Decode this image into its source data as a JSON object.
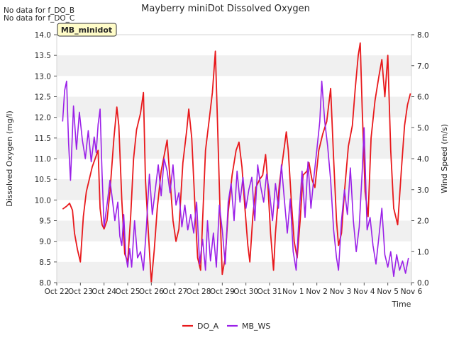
{
  "chart_data": {
    "type": "line",
    "title": "Mayberry miniDot Dissolved Oxygen",
    "notes": [
      "No data for f_DO_B",
      "No data for f_DO_C"
    ],
    "site_badge": "MB_minidot",
    "xlabel": "Time",
    "ylabel_left": "Dissolved Oxygen (mg/l)",
    "ylabel_right": "Wind Speed (m/s)",
    "x_range": [
      "Oct 22",
      "Nov 6"
    ],
    "x_ticks": [
      "Oct 22",
      "Oct 23",
      "Oct 24",
      "Oct 25",
      "Oct 26",
      "Oct 27",
      "Oct 28",
      "Oct 29",
      "Oct 30",
      "Oct 31",
      "Nov 1",
      "Nov 2",
      "Nov 3",
      "Nov 4",
      "Nov 5",
      "Nov 6"
    ],
    "ylim_left": [
      8.0,
      14.0
    ],
    "yticks_left": [
      "8.0",
      "8.5",
      "9.0",
      "9.5",
      "10.0",
      "10.5",
      "11.0",
      "11.5",
      "12.0",
      "12.5",
      "13.0",
      "13.5",
      "14.0"
    ],
    "ylim_right": [
      0.0,
      8.0
    ],
    "yticks_right": [
      "0.0",
      "1.0",
      "2.0",
      "3.0",
      "4.0",
      "5.0",
      "6.0",
      "7.0",
      "8.0"
    ],
    "grid": "horizontal bands",
    "legend_position": "bottom-center",
    "series": [
      {
        "name": "DO_A",
        "axis": "left",
        "color": "#e8191c",
        "points": [
          [
            "Oct 22 06:00",
            9.78
          ],
          [
            "Oct 22 10:00",
            9.85
          ],
          [
            "Oct 22 13:00",
            9.92
          ],
          [
            "Oct 22 16:00",
            9.75
          ],
          [
            "Oct 22 18:00",
            9.2
          ],
          [
            "Oct 22 21:00",
            8.8
          ],
          [
            "Oct 23 00:00",
            8.5
          ],
          [
            "Oct 23 03:00",
            9.6
          ],
          [
            "Oct 23 06:00",
            10.2
          ],
          [
            "Oct 23 12:00",
            10.8
          ],
          [
            "Oct 23 18:00",
            11.2
          ],
          [
            "Oct 23 20:00",
            9.8
          ],
          [
            "Oct 23 22:00",
            9.4
          ],
          [
            "Oct 24 00:00",
            9.3
          ],
          [
            "Oct 24 03:00",
            9.5
          ],
          [
            "Oct 24 06:00",
            10.2
          ],
          [
            "Oct 24 10:00",
            11.5
          ],
          [
            "Oct 24 13:00",
            12.25
          ],
          [
            "Oct 24 15:00",
            11.8
          ],
          [
            "Oct 24 18:00",
            10.0
          ],
          [
            "Oct 24 21:00",
            8.7
          ],
          [
            "Oct 25 00:00",
            8.5
          ],
          [
            "Oct 25 03:00",
            9.6
          ],
          [
            "Oct 25 06:00",
            11.0
          ],
          [
            "Oct 25 09:00",
            11.7
          ],
          [
            "Oct 25 13:00",
            12.1
          ],
          [
            "Oct 25 16:00",
            12.6
          ],
          [
            "Oct 25 18:00",
            10.5
          ],
          [
            "Oct 25 21:00",
            9.2
          ],
          [
            "Oct 26 00:00",
            8.0
          ],
          [
            "Oct 26 03:00",
            8.8
          ],
          [
            "Oct 26 06:00",
            9.8
          ],
          [
            "Oct 26 10:00",
            10.7
          ],
          [
            "Oct 26 14:00",
            11.2
          ],
          [
            "Oct 26 16:00",
            11.45
          ],
          [
            "Oct 26 19:00",
            10.5
          ],
          [
            "Oct 26 22:00",
            9.5
          ],
          [
            "Oct 27 01:00",
            9.0
          ],
          [
            "Oct 27 04:00",
            9.3
          ],
          [
            "Oct 27 08:00",
            10.9
          ],
          [
            "Oct 27 12:00",
            11.7
          ],
          [
            "Oct 27 14:00",
            12.2
          ],
          [
            "Oct 27 17:00",
            11.5
          ],
          [
            "Oct 27 20:00",
            10.0
          ],
          [
            "Oct 27 23:00",
            8.6
          ],
          [
            "Oct 28 02:00",
            8.3
          ],
          [
            "Oct 28 04:00",
            9.5
          ],
          [
            "Oct 28 07:00",
            11.2
          ],
          [
            "Oct 28 11:00",
            12.0
          ],
          [
            "Oct 28 14:00",
            12.6
          ],
          [
            "Oct 28 17:00",
            13.6
          ],
          [
            "Oct 28 19:00",
            12.0
          ],
          [
            "Oct 28 22:00",
            9.5
          ],
          [
            "Oct 29 00:00",
            8.2
          ],
          [
            "Oct 29 03:00",
            8.6
          ],
          [
            "Oct 29 06:00",
            9.7
          ],
          [
            "Oct 29 10:00",
            10.6
          ],
          [
            "Oct 29 14:00",
            11.2
          ],
          [
            "Oct 29 17:00",
            11.4
          ],
          [
            "Oct 29 20:00",
            10.8
          ],
          [
            "Oct 29 23:00",
            9.8
          ],
          [
            "Oct 30 02:00",
            8.9
          ],
          [
            "Oct 30 04:00",
            8.5
          ],
          [
            "Oct 30 07:00",
            9.6
          ],
          [
            "Oct 30 10:00",
            10.3
          ],
          [
            "Oct 30 14:00",
            10.5
          ],
          [
            "Oct 30 17:00",
            10.6
          ],
          [
            "Oct 30 20:00",
            11.1
          ],
          [
            "Oct 30 22:00",
            10.5
          ],
          [
            "Oct 31 01:00",
            9.2
          ],
          [
            "Oct 31 04:00",
            8.3
          ],
          [
            "Oct 31 06:00",
            9.2
          ],
          [
            "Oct 31 10:00",
            10.4
          ],
          [
            "Oct 31 14:00",
            11.1
          ],
          [
            "Oct 31 17:00",
            11.65
          ],
          [
            "Oct 31 19:00",
            11.2
          ],
          [
            "Oct 31 22:00",
            10.0
          ],
          [
            "Nov 1 01:00",
            9.0
          ],
          [
            "Nov 1 04:00",
            8.6
          ],
          [
            "Nov 1 07:00",
            9.5
          ],
          [
            "Nov 1 10:00",
            10.6
          ],
          [
            "Nov 1 14:00",
            10.7
          ],
          [
            "Nov 1 16:00",
            10.9
          ],
          [
            "Nov 1 19:00",
            10.5
          ],
          [
            "Nov 1 22:00",
            10.3
          ],
          [
            "Nov 2 02:00",
            11.2
          ],
          [
            "Nov 2 06:00",
            11.6
          ],
          [
            "Nov 2 10:00",
            11.9
          ],
          [
            "Nov 2 14:00",
            12.7
          ],
          [
            "Nov 2 17:00",
            11.0
          ],
          [
            "Nov 2 20:00",
            9.5
          ],
          [
            "Nov 2 22:00",
            8.9
          ],
          [
            "Nov 3 01:00",
            9.2
          ],
          [
            "Nov 3 04:00",
            10.2
          ],
          [
            "Nov 3 08:00",
            11.3
          ],
          [
            "Nov 3 12:00",
            11.8
          ],
          [
            "Nov 3 15:00",
            12.7
          ],
          [
            "Nov 3 18:00",
            13.5
          ],
          [
            "Nov 3 20:00",
            13.8
          ],
          [
            "Nov 3 22:00",
            12.2
          ],
          [
            "Nov 4 01:00",
            10.2
          ],
          [
            "Nov 4 04:00",
            9.6
          ],
          [
            "Nov 4 07:00",
            11.5
          ],
          [
            "Nov 4 11:00",
            12.4
          ],
          [
            "Nov 4 15:00",
            13.0
          ],
          [
            "Nov 4 18:00",
            13.4
          ],
          [
            "Nov 4 21:00",
            12.5
          ],
          [
            "Nov 5 00:00",
            13.5
          ],
          [
            "Nov 5 03:00",
            11.2
          ],
          [
            "Nov 5 06:00",
            9.8
          ],
          [
            "Nov 5 10:00",
            9.4
          ],
          [
            "Nov 5 14:00",
            10.8
          ],
          [
            "Nov 5 17:00",
            11.8
          ],
          [
            "Nov 5 20:00",
            12.3
          ],
          [
            "Nov 5 23:00",
            12.58
          ]
        ]
      },
      {
        "name": "MB_WS",
        "axis": "right",
        "color": "#9a20e8",
        "points": [
          [
            "Oct 22 06:00",
            5.2
          ],
          [
            "Oct 22 08:00",
            6.2
          ],
          [
            "Oct 22 10:00",
            6.5
          ],
          [
            "Oct 22 12:00",
            4.5
          ],
          [
            "Oct 22 14:00",
            3.3
          ],
          [
            "Oct 22 17:00",
            5.7
          ],
          [
            "Oct 22 20:00",
            4.3
          ],
          [
            "Oct 22 23:00",
            5.5
          ],
          [
            "Oct 23 02:00",
            4.6
          ],
          [
            "Oct 23 05:00",
            4.0
          ],
          [
            "Oct 23 08:00",
            4.9
          ],
          [
            "Oct 23 11:00",
            3.9
          ],
          [
            "Oct 23 14:00",
            4.7
          ],
          [
            "Oct 23 16:00",
            4.2
          ],
          [
            "Oct 23 18:00",
            5.1
          ],
          [
            "Oct 23 20:00",
            5.6
          ],
          [
            "Oct 23 22:00",
            3.5
          ],
          [
            "Oct 24 00:00",
            1.8
          ],
          [
            "Oct 24 03:00",
            2.5
          ],
          [
            "Oct 24 06:00",
            3.3
          ],
          [
            "Oct 24 08:00",
            2.8
          ],
          [
            "Oct 24 11:00",
            2.0
          ],
          [
            "Oct 24 14:00",
            2.6
          ],
          [
            "Oct 24 16:00",
            1.5
          ],
          [
            "Oct 24 18:00",
            1.2
          ],
          [
            "Oct 24 20:00",
            2.2
          ],
          [
            "Oct 24 22:00",
            0.9
          ],
          [
            "Oct 25 00:00",
            0.5
          ],
          [
            "Oct 25 02:00",
            1.1
          ],
          [
            "Oct 25 04:00",
            0.5
          ],
          [
            "Oct 25 07:00",
            2.0
          ],
          [
            "Oct 25 10:00",
            0.8
          ],
          [
            "Oct 25 13:00",
            1.0
          ],
          [
            "Oct 25 16:00",
            0.4
          ],
          [
            "Oct 25 19:00",
            1.8
          ],
          [
            "Oct 25 22:00",
            3.5
          ],
          [
            "Oct 26 01:00",
            2.2
          ],
          [
            "Oct 26 04:00",
            3.0
          ],
          [
            "Oct 26 07:00",
            3.8
          ],
          [
            "Oct 26 10:00",
            2.8
          ],
          [
            "Oct 26 13:00",
            4.0
          ],
          [
            "Oct 26 16:00",
            3.6
          ],
          [
            "Oct 26 19:00",
            2.9
          ],
          [
            "Oct 26 22:00",
            3.8
          ],
          [
            "Oct 27 01:00",
            2.5
          ],
          [
            "Oct 27 04:00",
            2.9
          ],
          [
            "Oct 27 07:00",
            1.8
          ],
          [
            "Oct 27 10:00",
            2.5
          ],
          [
            "Oct 27 13:00",
            1.7
          ],
          [
            "Oct 27 16:00",
            2.2
          ],
          [
            "Oct 27 19:00",
            1.6
          ],
          [
            "Oct 27 22:00",
            2.6
          ],
          [
            "Oct 28 01:00",
            0.6
          ],
          [
            "Oct 28 04:00",
            1.4
          ],
          [
            "Oct 28 07:00",
            0.4
          ],
          [
            "Oct 28 09:00",
            2.0
          ],
          [
            "Oct 28 12:00",
            0.7
          ],
          [
            "Oct 28 15:00",
            1.6
          ],
          [
            "Oct 28 18:00",
            0.5
          ],
          [
            "Oct 28 21:00",
            2.5
          ],
          [
            "Oct 29 00:00",
            1.7
          ],
          [
            "Oct 29 03:00",
            0.6
          ],
          [
            "Oct 29 06:00",
            2.6
          ],
          [
            "Oct 29 09:00",
            3.2
          ],
          [
            "Oct 29 12:00",
            2.0
          ],
          [
            "Oct 29 15:00",
            3.6
          ],
          [
            "Oct 29 18:00",
            2.6
          ],
          [
            "Oct 29 21:00",
            3.4
          ],
          [
            "Oct 30 00:00",
            2.4
          ],
          [
            "Oct 30 03:00",
            3.0
          ],
          [
            "Oct 30 06:00",
            3.4
          ],
          [
            "Oct 30 09:00",
            2.0
          ],
          [
            "Oct 30 12:00",
            3.8
          ],
          [
            "Oct 30 15:00",
            3.1
          ],
          [
            "Oct 30 18:00",
            2.6
          ],
          [
            "Oct 30 21:00",
            3.5
          ],
          [
            "Oct 31 00:00",
            2.9
          ],
          [
            "Oct 31 03:00",
            2.0
          ],
          [
            "Oct 31 06:00",
            3.2
          ],
          [
            "Oct 31 09:00",
            2.4
          ],
          [
            "Oct 31 12:00",
            3.8
          ],
          [
            "Oct 31 15:00",
            2.7
          ],
          [
            "Oct 31 18:00",
            1.6
          ],
          [
            "Oct 31 21:00",
            2.7
          ],
          [
            "Nov 1 00:00",
            1.0
          ],
          [
            "Nov 1 03:00",
            0.4
          ],
          [
            "Nov 1 06:00",
            2.2
          ],
          [
            "Nov 1 09:00",
            3.6
          ],
          [
            "Nov 1 12:00",
            2.1
          ],
          [
            "Nov 1 15:00",
            3.9
          ],
          [
            "Nov 1 18:00",
            2.4
          ],
          [
            "Nov 1 21:00",
            3.4
          ],
          [
            "Nov 2 00:00",
            4.3
          ],
          [
            "Nov 2 03:00",
            5.2
          ],
          [
            "Nov 2 05:00",
            6.5
          ],
          [
            "Nov 2 08:00",
            5.2
          ],
          [
            "Nov 2 11:00",
            4.4
          ],
          [
            "Nov 2 14:00",
            3.3
          ],
          [
            "Nov 2 17:00",
            1.7
          ],
          [
            "Nov 2 20:00",
            0.8
          ],
          [
            "Nov 2 22:00",
            0.4
          ],
          [
            "Nov 3 01:00",
            2.0
          ],
          [
            "Nov 3 04:00",
            3.0
          ],
          [
            "Nov 3 07:00",
            2.2
          ],
          [
            "Nov 3 10:00",
            3.7
          ],
          [
            "Nov 3 13:00",
            2.0
          ],
          [
            "Nov 3 16:00",
            1.0
          ],
          [
            "Nov 3 19:00",
            1.8
          ],
          [
            "Nov 3 22:00",
            3.6
          ],
          [
            "Nov 4 00:00",
            5.0
          ],
          [
            "Nov 4 03:00",
            1.7
          ],
          [
            "Nov 4 06:00",
            2.1
          ],
          [
            "Nov 4 09:00",
            1.2
          ],
          [
            "Nov 4 12:00",
            0.6
          ],
          [
            "Nov 4 15:00",
            1.5
          ],
          [
            "Nov 4 18:00",
            2.4
          ],
          [
            "Nov 4 21:00",
            0.9
          ],
          [
            "Nov 5 00:00",
            0.5
          ],
          [
            "Nov 5 03:00",
            1.0
          ],
          [
            "Nov 5 06:00",
            0.2
          ],
          [
            "Nov 5 09:00",
            0.9
          ],
          [
            "Nov 5 12:00",
            0.4
          ],
          [
            "Nov 5 15:00",
            0.7
          ],
          [
            "Nov 5 18:00",
            0.3
          ],
          [
            "Nov 5 21:00",
            0.8
          ]
        ]
      }
    ]
  }
}
